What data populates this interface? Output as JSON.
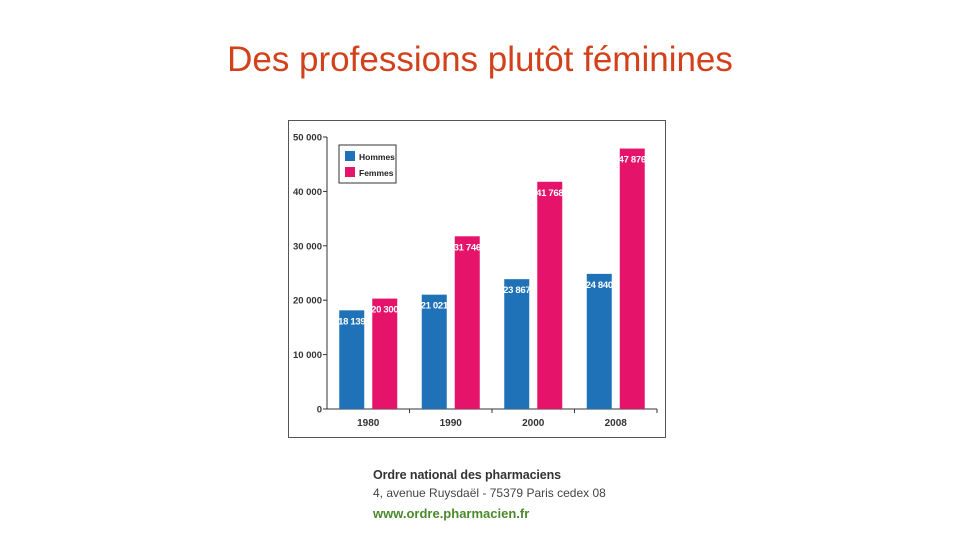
{
  "slide": {
    "title": "Des professions plutôt féminines"
  },
  "colors": {
    "title": "#d2411b",
    "hommes": "#1f72b8",
    "femmes": "#e5136a",
    "url": "#4a8a2c"
  },
  "chart_data": {
    "type": "bar",
    "categories": [
      "1980",
      "1990",
      "2000",
      "2008"
    ],
    "series": [
      {
        "name": "Hommes",
        "values": [
          18139,
          21021,
          23867,
          24840
        ],
        "labels": [
          "18 139",
          "21 021",
          "23 867",
          "24 840"
        ]
      },
      {
        "name": "Femmes",
        "values": [
          20300,
          31746,
          41768,
          47876
        ],
        "labels": [
          "20 300",
          "31 746",
          "41 768",
          "47 876"
        ]
      }
    ],
    "ylim": [
      0,
      50000
    ],
    "yticks": [
      0,
      10000,
      20000,
      30000,
      40000,
      50000
    ],
    "ytick_labels": [
      "0",
      "10 000",
      "20 000",
      "30 000",
      "40 000",
      "50 000"
    ],
    "legend_position": "top-left",
    "grid": false
  },
  "source": {
    "org": "Ordre national des pharmaciens",
    "address": "4, avenue Ruysdaël - 75379 Paris cedex 08",
    "url": "www.ordre.pharmacien.fr"
  }
}
